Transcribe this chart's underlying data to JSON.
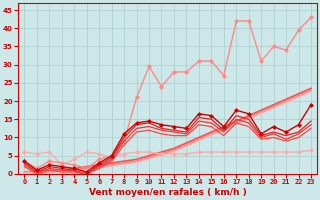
{
  "background_color": "#cce8e8",
  "grid_color": "#aacccc",
  "x_label": "Vent moyen/en rafales ( km/h )",
  "x_ticks": [
    0,
    1,
    2,
    3,
    4,
    5,
    6,
    7,
    8,
    9,
    10,
    11,
    12,
    13,
    14,
    15,
    16,
    17,
    18,
    19,
    20,
    21,
    22,
    23
  ],
  "ylim": [
    0,
    47
  ],
  "yticks": [
    0,
    5,
    10,
    15,
    20,
    25,
    30,
    35,
    40,
    45
  ],
  "lines": [
    {
      "x": [
        0,
        1,
        2,
        3,
        4,
        5,
        6,
        7,
        8,
        9,
        10,
        11,
        12,
        13,
        14,
        15,
        16,
        17,
        18,
        19,
        20,
        21,
        22,
        23
      ],
      "y": [
        3.5,
        1.0,
        2.5,
        2.0,
        1.5,
        0.5,
        3.0,
        5.0,
        11.0,
        14.0,
        14.5,
        13.5,
        13.0,
        12.5,
        16.5,
        16.0,
        13.0,
        17.5,
        16.5,
        11.0,
        13.0,
        11.5,
        13.5,
        19.0
      ],
      "color": "#cc0000",
      "lw": 1.0,
      "marker": "D",
      "ms": 2.0,
      "zorder": 5
    },
    {
      "x": [
        0,
        1,
        2,
        3,
        4,
        5,
        6,
        7,
        8,
        9,
        10,
        11,
        12,
        13,
        14,
        15,
        16,
        17,
        18,
        19,
        20,
        21,
        22,
        23
      ],
      "y": [
        3.0,
        0.5,
        2.0,
        1.5,
        1.0,
        0.0,
        2.5,
        4.5,
        10.0,
        13.5,
        14.0,
        12.5,
        12.0,
        11.5,
        15.5,
        15.0,
        12.0,
        16.0,
        15.0,
        10.5,
        11.5,
        10.5,
        11.5,
        14.5
      ],
      "color": "#dd2222",
      "lw": 0.9,
      "marker": null,
      "ms": 0,
      "zorder": 4
    },
    {
      "x": [
        0,
        1,
        2,
        3,
        4,
        5,
        6,
        7,
        8,
        9,
        10,
        11,
        12,
        13,
        14,
        15,
        16,
        17,
        18,
        19,
        20,
        21,
        22,
        23
      ],
      "y": [
        2.5,
        0.3,
        1.5,
        1.0,
        0.8,
        0.0,
        2.0,
        4.0,
        9.0,
        12.5,
        13.0,
        12.0,
        11.5,
        11.0,
        14.5,
        14.0,
        11.5,
        15.0,
        14.0,
        10.0,
        11.0,
        9.5,
        11.0,
        13.5
      ],
      "color": "#ee3333",
      "lw": 0.9,
      "marker": null,
      "ms": 0,
      "zorder": 4
    },
    {
      "x": [
        0,
        1,
        2,
        3,
        4,
        5,
        6,
        7,
        8,
        9,
        10,
        11,
        12,
        13,
        14,
        15,
        16,
        17,
        18,
        19,
        20,
        21,
        22,
        23
      ],
      "y": [
        2.0,
        0.0,
        1.0,
        0.5,
        0.5,
        0.0,
        1.5,
        3.5,
        8.0,
        11.5,
        12.0,
        11.0,
        10.5,
        10.5,
        13.5,
        13.0,
        10.5,
        14.0,
        13.0,
        9.5,
        10.0,
        9.0,
        10.0,
        12.5
      ],
      "color": "#ff4444",
      "lw": 0.9,
      "marker": null,
      "ms": 0,
      "zorder": 4
    },
    {
      "x": [
        0,
        1,
        2,
        3,
        4,
        5,
        6,
        7,
        8,
        9,
        10,
        11,
        12,
        13,
        14,
        15,
        16,
        17,
        18,
        19,
        20,
        21,
        22,
        23
      ],
      "y": [
        6.0,
        5.5,
        6.0,
        2.5,
        4.0,
        6.0,
        5.5,
        4.5,
        5.5,
        6.0,
        6.0,
        5.5,
        5.5,
        5.5,
        6.0,
        6.0,
        6.0,
        6.0,
        6.0,
        6.0,
        6.0,
        6.0,
        6.0,
        6.5
      ],
      "color": "#ffaaaa",
      "lw": 1.0,
      "marker": "D",
      "ms": 2.0,
      "zorder": 3
    },
    {
      "x": [
        0,
        1,
        2,
        3,
        4,
        5,
        6,
        7,
        8,
        9,
        10,
        11,
        12,
        13,
        14,
        15,
        16,
        17,
        18,
        19,
        20,
        21,
        22,
        23
      ],
      "y": [
        3.5,
        1.5,
        3.5,
        3.0,
        2.5,
        1.5,
        4.0,
        5.0,
        9.0,
        21.0,
        29.5,
        24.0,
        28.0,
        28.0,
        31.0,
        31.0,
        27.0,
        42.0,
        42.0,
        31.0,
        35.0,
        34.0,
        39.5,
        43.0
      ],
      "color": "#ff8888",
      "lw": 1.0,
      "marker": "D",
      "ms": 2.0,
      "zorder": 3
    },
    {
      "x": [
        0,
        1,
        2,
        3,
        4,
        5,
        6,
        7,
        8,
        9,
        10,
        11,
        12,
        13,
        14,
        15,
        16,
        17,
        18,
        19,
        20,
        21,
        22,
        23
      ],
      "y": [
        0.5,
        0.5,
        1.0,
        1.0,
        1.5,
        2.0,
        2.5,
        3.0,
        3.5,
        4.0,
        5.0,
        6.0,
        7.0,
        8.5,
        10.0,
        11.5,
        13.0,
        14.5,
        16.0,
        17.5,
        19.0,
        20.5,
        22.0,
        23.5
      ],
      "color": "#ee5555",
      "lw": 1.2,
      "marker": null,
      "ms": 0,
      "zorder": 2
    },
    {
      "x": [
        0,
        1,
        2,
        3,
        4,
        5,
        6,
        7,
        8,
        9,
        10,
        11,
        12,
        13,
        14,
        15,
        16,
        17,
        18,
        19,
        20,
        21,
        22,
        23
      ],
      "y": [
        0.5,
        0.5,
        0.8,
        1.0,
        1.2,
        1.5,
        2.0,
        2.5,
        3.0,
        3.5,
        4.5,
        5.5,
        6.5,
        8.0,
        9.5,
        11.0,
        12.5,
        14.0,
        15.5,
        17.0,
        18.5,
        20.0,
        21.5,
        23.0
      ],
      "color": "#ff7777",
      "lw": 1.2,
      "marker": null,
      "ms": 0,
      "zorder": 2
    },
    {
      "x": [
        0,
        1,
        2,
        3,
        4,
        5,
        6,
        7,
        8,
        9,
        10,
        11,
        12,
        13,
        14,
        15,
        16,
        17,
        18,
        19,
        20,
        21,
        22,
        23
      ],
      "y": [
        0.3,
        0.3,
        0.5,
        0.7,
        0.9,
        1.2,
        1.7,
        2.2,
        2.7,
        3.2,
        4.2,
        5.2,
        6.2,
        7.7,
        9.2,
        10.7,
        12.2,
        13.7,
        15.2,
        16.7,
        18.2,
        19.7,
        21.2,
        22.7
      ],
      "color": "#ffaaaa",
      "lw": 1.2,
      "marker": null,
      "ms": 0,
      "zorder": 2
    }
  ],
  "tick_color": "#cc0000",
  "label_color": "#cc0000",
  "tick_fontsize": 5.0,
  "label_fontsize": 6.5
}
